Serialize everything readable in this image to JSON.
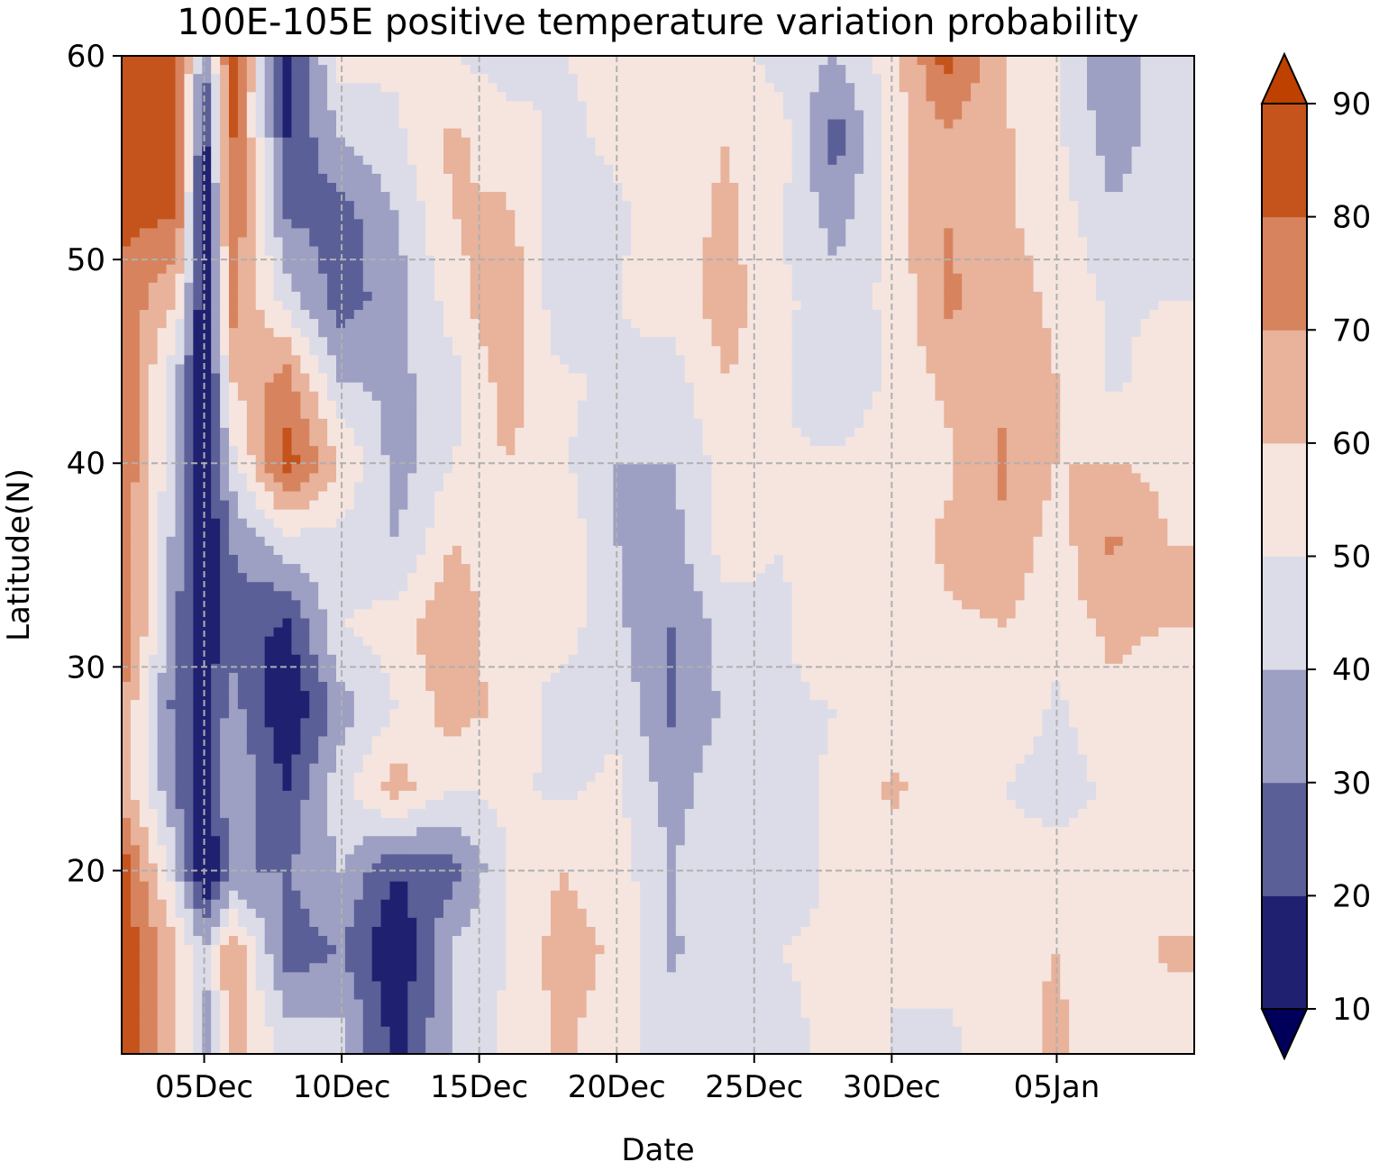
{
  "chart_data": {
    "type": "heatmap",
    "subtype": "filled-contour",
    "title": "100E-105E positive temperature variation probability",
    "xlabel": "Date",
    "ylabel": "Latitude(N)",
    "x_range": [
      "2023-12-02",
      "2024-01-10"
    ],
    "x_tick_dates": [
      "2023-12-05",
      "2023-12-10",
      "2023-12-15",
      "2023-12-20",
      "2023-12-25",
      "2023-12-30",
      "2024-01-05"
    ],
    "x_tick_labels": [
      "05Dec",
      "10Dec",
      "15Dec",
      "20Dec",
      "25Dec",
      "30Dec",
      "05Jan"
    ],
    "ylim": [
      11,
      60
    ],
    "y_ticks": [
      20,
      30,
      40,
      50,
      60
    ],
    "grid": true,
    "grid_style": "dashed",
    "colorbar": {
      "position": "right",
      "levels": [
        10,
        20,
        30,
        40,
        50,
        60,
        70,
        80,
        90
      ],
      "tick_labels": [
        "10",
        "20",
        "30",
        "40",
        "50",
        "60",
        "70",
        "80",
        "90"
      ],
      "extend": "both",
      "colors": [
        "#00005a",
        "#1f2170",
        "#5a5f98",
        "#9d9fc3",
        "#dcdce8",
        "#f6e5df",
        "#e8b29b",
        "#d7835e",
        "#c4531c",
        "#be4100"
      ]
    },
    "lat_rows": [
      60,
      56,
      52,
      48,
      44,
      40,
      36,
      32,
      28,
      24,
      20,
      16,
      12
    ],
    "date_cols": [
      "2023-12-02",
      "2023-12-04",
      "2023-12-05",
      "2023-12-06",
      "2023-12-08",
      "2023-12-10",
      "2023-12-12",
      "2023-12-14",
      "2023-12-16",
      "2023-12-18",
      "2023-12-20",
      "2023-12-22",
      "2023-12-24",
      "2023-12-26",
      "2023-12-28",
      "2023-12-30",
      "2024-01-01",
      "2024-01-03",
      "2024-01-05",
      "2024-01-07",
      "2024-01-09"
    ],
    "values": [
      [
        88,
        86,
        30,
        85,
        15,
        55,
        52,
        50,
        45,
        50,
        52,
        55,
        55,
        45,
        40,
        55,
        85,
        60,
        50,
        30,
        50
      ],
      [
        88,
        84,
        15,
        82,
        20,
        40,
        48,
        62,
        55,
        48,
        52,
        55,
        60,
        55,
        25,
        55,
        68,
        62,
        52,
        35,
        45
      ],
      [
        82,
        80,
        8,
        80,
        30,
        25,
        40,
        60,
        62,
        45,
        48,
        55,
        62,
        50,
        35,
        55,
        70,
        62,
        55,
        42,
        45
      ],
      [
        78,
        60,
        8,
        75,
        45,
        25,
        35,
        55,
        72,
        40,
        50,
        55,
        65,
        52,
        45,
        52,
        72,
        65,
        58,
        48,
        50
      ],
      [
        82,
        40,
        8,
        60,
        75,
        40,
        38,
        45,
        65,
        52,
        48,
        45,
        60,
        52,
        42,
        52,
        62,
        68,
        60,
        48,
        55
      ],
      [
        80,
        42,
        8,
        45,
        85,
        60,
        35,
        50,
        60,
        52,
        40,
        40,
        55,
        50,
        52,
        55,
        58,
        72,
        60,
        60,
        58
      ],
      [
        78,
        35,
        10,
        30,
        45,
        45,
        40,
        60,
        55,
        58,
        40,
        35,
        55,
        50,
        55,
        55,
        62,
        68,
        55,
        72,
        60
      ],
      [
        82,
        30,
        12,
        25,
        18,
        50,
        55,
        70,
        50,
        55,
        42,
        30,
        45,
        48,
        60,
        50,
        58,
        60,
        55,
        62,
        60
      ],
      [
        70,
        25,
        15,
        35,
        10,
        35,
        50,
        65,
        58,
        45,
        48,
        28,
        42,
        48,
        50,
        52,
        55,
        58,
        48,
        58,
        55
      ],
      [
        65,
        30,
        12,
        40,
        20,
        48,
        65,
        50,
        52,
        48,
        52,
        35,
        48,
        45,
        52,
        62,
        55,
        50,
        45,
        52,
        55
      ],
      [
        88,
        42,
        8,
        30,
        30,
        40,
        20,
        25,
        50,
        60,
        55,
        40,
        50,
        45,
        52,
        55,
        50,
        55,
        55,
        58,
        52
      ],
      [
        88,
        62,
        40,
        70,
        25,
        30,
        10,
        42,
        50,
        65,
        58,
        38,
        48,
        50,
        52,
        50,
        55,
        58,
        60,
        52,
        62
      ],
      [
        88,
        62,
        35,
        65,
        45,
        42,
        15,
        40,
        52,
        62,
        55,
        45,
        50,
        48,
        52,
        50,
        48,
        55,
        62,
        55,
        52
      ]
    ]
  }
}
